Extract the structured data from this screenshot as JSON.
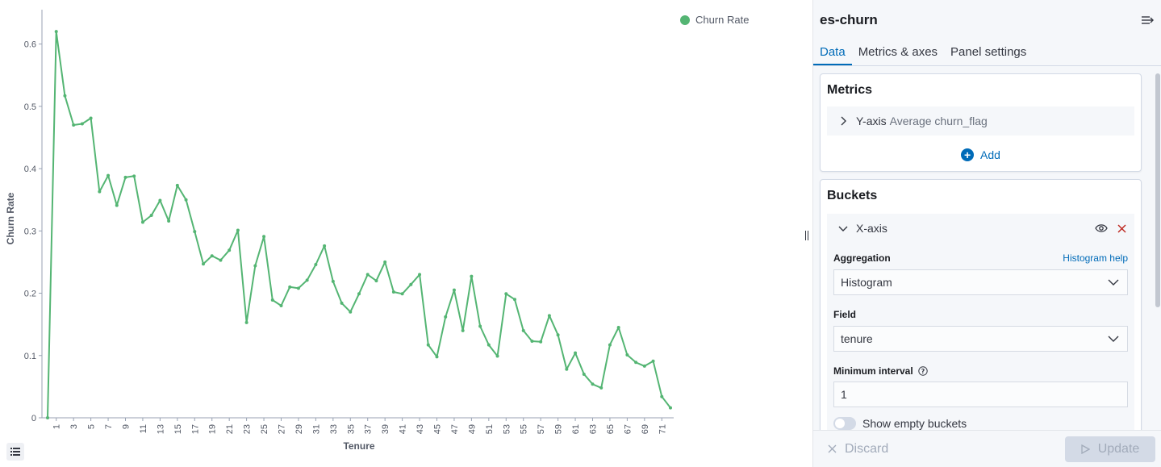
{
  "panel": {
    "title": "es-churn",
    "tabs": [
      "Data",
      "Metrics & axes",
      "Panel settings"
    ],
    "metrics": {
      "title": "Metrics",
      "item_axis": "Y-axis",
      "item_desc": "Average churn_flag",
      "add_label": "Add"
    },
    "buckets": {
      "title": "Buckets",
      "item_axis": "X-axis",
      "aggregation_label": "Aggregation",
      "aggregation_help": "Histogram help",
      "aggregation_value": "Histogram",
      "field_label": "Field",
      "field_value": "tenure",
      "interval_label": "Minimum interval",
      "interval_value": "1",
      "empty_buckets_label": "Show empty buckets"
    },
    "footer": {
      "discard_label": "Discard",
      "update_label": "Update"
    }
  },
  "colors": {
    "series": "#54b573",
    "accent": "#006bb8"
  },
  "chart_data": {
    "type": "line",
    "xlabel": "Tenure",
    "ylabel": "Churn Rate",
    "legend": "top-right",
    "ylim": [
      0,
      0.65
    ],
    "yticks": [
      0,
      0.1,
      0.2,
      0.3,
      0.4,
      0.5,
      0.6
    ],
    "xticks": [
      1,
      3,
      5,
      7,
      9,
      11,
      13,
      15,
      17,
      19,
      21,
      23,
      25,
      27,
      29,
      31,
      33,
      35,
      37,
      39,
      41,
      43,
      45,
      47,
      49,
      51,
      53,
      55,
      57,
      59,
      61,
      63,
      65,
      67,
      69,
      71
    ],
    "series": [
      {
        "name": "Churn Rate",
        "x": [
          0,
          1,
          2,
          3,
          4,
          5,
          6,
          7,
          8,
          9,
          10,
          11,
          12,
          13,
          14,
          15,
          16,
          17,
          18,
          19,
          20,
          21,
          22,
          23,
          24,
          25,
          26,
          27,
          28,
          29,
          30,
          31,
          32,
          33,
          34,
          35,
          36,
          37,
          38,
          39,
          40,
          41,
          42,
          43,
          44,
          45,
          46,
          47,
          48,
          49,
          50,
          51,
          52,
          53,
          54,
          55,
          56,
          57,
          58,
          59,
          60,
          61,
          62,
          63,
          64,
          65,
          66,
          67,
          68,
          69,
          70,
          71,
          72
        ],
        "values": [
          0,
          0.62,
          0.517,
          0.47,
          0.472,
          0.481,
          0.363,
          0.389,
          0.341,
          0.386,
          0.388,
          0.314,
          0.325,
          0.349,
          0.316,
          0.373,
          0.35,
          0.299,
          0.247,
          0.26,
          0.253,
          0.269,
          0.301,
          0.153,
          0.244,
          0.291,
          0.189,
          0.18,
          0.21,
          0.208,
          0.221,
          0.246,
          0.276,
          0.219,
          0.184,
          0.17,
          0.199,
          0.23,
          0.22,
          0.25,
          0.202,
          0.199,
          0.214,
          0.23,
          0.117,
          0.098,
          0.162,
          0.205,
          0.14,
          0.227,
          0.147,
          0.117,
          0.099,
          0.199,
          0.19,
          0.14,
          0.123,
          0.122,
          0.164,
          0.133,
          0.078,
          0.104,
          0.07,
          0.054,
          0.048,
          0.117,
          0.145,
          0.101,
          0.089,
          0.083,
          0.091,
          0.034,
          0.016
        ]
      }
    ]
  }
}
